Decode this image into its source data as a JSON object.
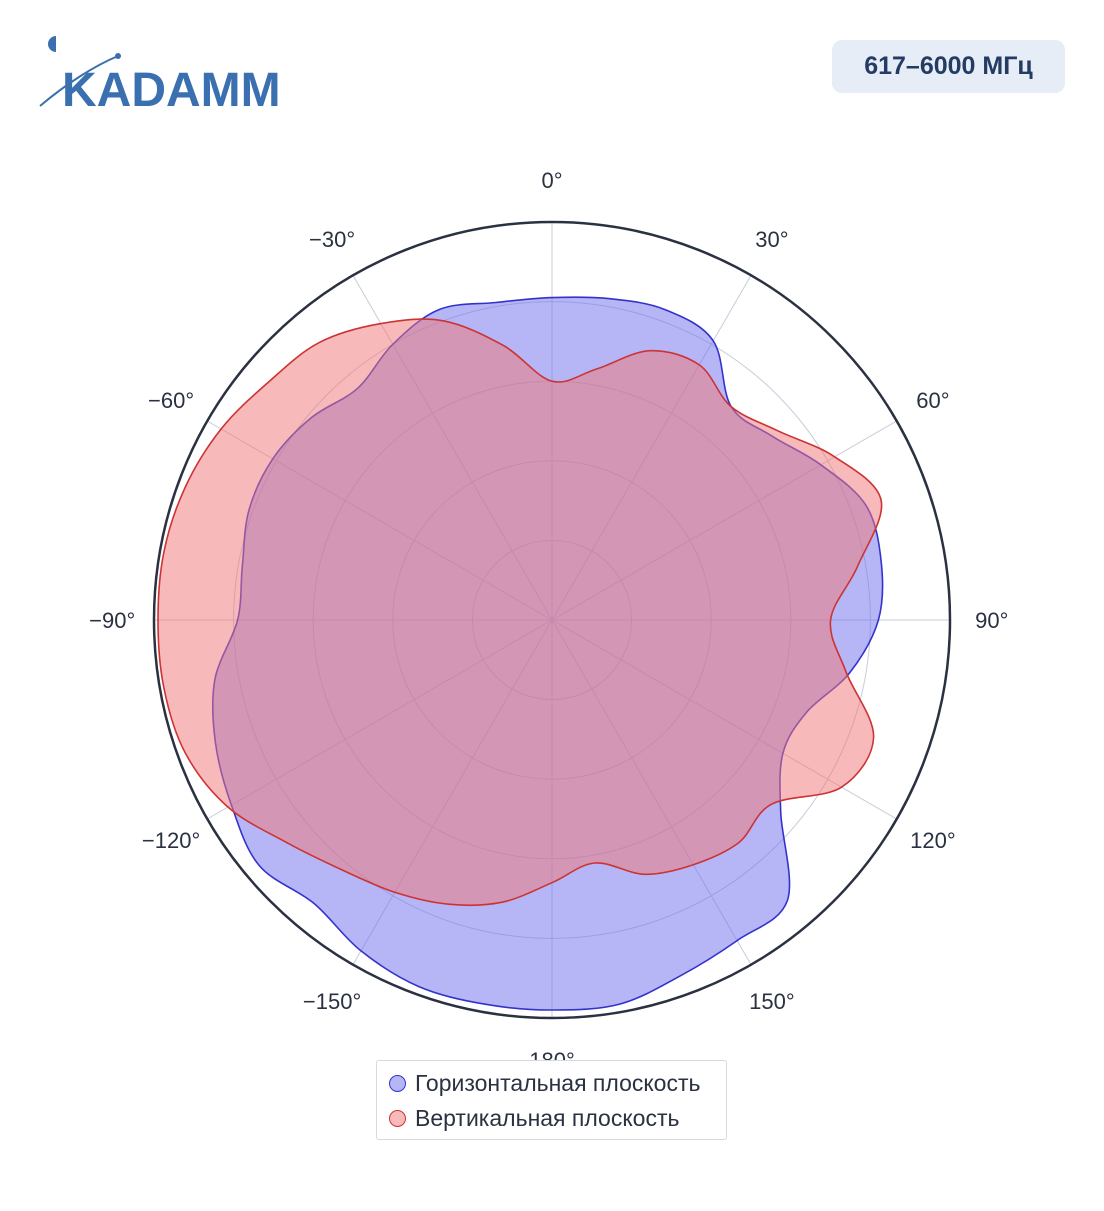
{
  "brand": {
    "logo_text": "KADAMM",
    "logo_color": "#3a6fb0"
  },
  "header": {
    "frequency_badge": "617–6000 МГц"
  },
  "colors": {
    "horizontal_fill": "rgba(110,110,240,0.5)",
    "horizontal_line": "#3333cc",
    "vertical_fill": "rgba(240,120,120,0.52)",
    "vertical_line": "#cc3333",
    "grid": "#c8ccd8",
    "frame": "#2a3140"
  },
  "chart_data": {
    "type": "polar-area",
    "angular_unit": "degrees",
    "direction": "clockwise",
    "zero_at": "top",
    "angular_tick_labels": [
      "0°",
      "30°",
      "60°",
      "90°",
      "120°",
      "150°",
      "180°",
      "−150°",
      "−120°",
      "−90°",
      "−60°",
      "−30°"
    ],
    "radial_range": [
      0,
      1
    ],
    "radial_grid_levels": [
      0.2,
      0.4,
      0.6,
      0.8
    ],
    "radial_tick_labels_shown": false,
    "grid": true,
    "legend_placement": "bottom-center",
    "series": [
      {
        "name": "Горизонтальная плоскость",
        "theta": [
          0,
          10,
          20,
          30,
          40,
          50,
          60,
          70,
          80,
          90,
          100,
          110,
          120,
          130,
          140,
          150,
          160,
          170,
          180,
          190,
          200,
          210,
          220,
          230,
          240,
          250,
          260,
          270,
          280,
          290,
          300,
          310,
          320,
          330,
          340,
          350
        ],
        "r": [
          0.81,
          0.82,
          0.83,
          0.81,
          0.7,
          0.72,
          0.78,
          0.84,
          0.84,
          0.82,
          0.76,
          0.68,
          0.67,
          0.75,
          0.92,
          0.93,
          0.95,
          0.98,
          0.98,
          0.98,
          0.98,
          0.96,
          0.93,
          0.96,
          0.93,
          0.9,
          0.86,
          0.79,
          0.79,
          0.81,
          0.81,
          0.79,
          0.76,
          0.8,
          0.83,
          0.81
        ]
      },
      {
        "name": "Вертикальная плоскость",
        "theta": [
          0,
          10,
          20,
          30,
          40,
          50,
          60,
          70,
          80,
          90,
          100,
          110,
          120,
          130,
          140,
          150,
          160,
          170,
          180,
          190,
          200,
          210,
          220,
          230,
          240,
          250,
          260,
          270,
          280,
          290,
          300,
          310,
          320,
          330,
          340,
          350
        ],
        "r": [
          0.6,
          0.64,
          0.72,
          0.74,
          0.7,
          0.74,
          0.82,
          0.88,
          0.78,
          0.7,
          0.75,
          0.86,
          0.84,
          0.72,
          0.73,
          0.71,
          0.68,
          0.62,
          0.66,
          0.72,
          0.76,
          0.79,
          0.82,
          0.87,
          0.94,
          0.98,
          0.99,
          0.99,
          0.99,
          0.98,
          0.96,
          0.93,
          0.91,
          0.86,
          0.8,
          0.7
        ]
      }
    ]
  }
}
